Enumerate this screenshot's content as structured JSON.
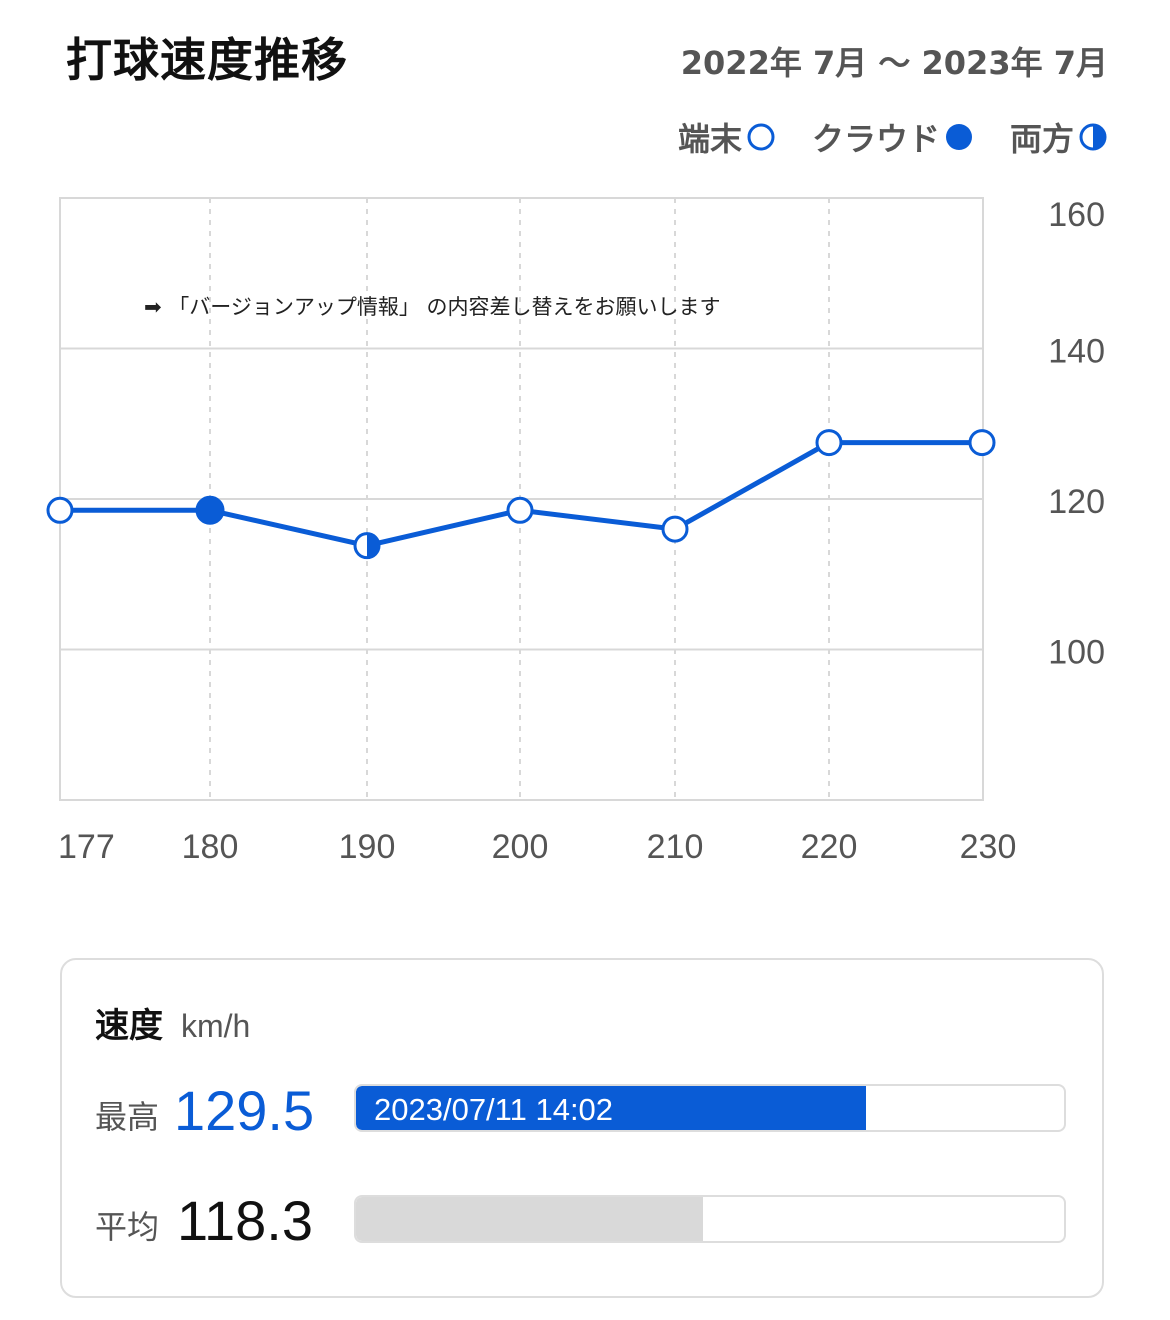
{
  "header": {
    "title": "打球速度推移",
    "period": "2022年 7月 〜 2023年 7月"
  },
  "legend": [
    {
      "label": "端末",
      "marker": "open-circle"
    },
    {
      "label": "クラウド",
      "marker": "filled-circle"
    },
    {
      "label": "両方",
      "marker": "half-circle"
    }
  ],
  "colors": {
    "accent": "#0a5cd6",
    "grid": "#d8d8d8",
    "axis_text": "#555555",
    "bar_average": "#d9d9d9"
  },
  "chart_data": {
    "type": "line",
    "annotation": "➡ 「バージョンアップ情報」 の内容差し替えをお願いします",
    "x_ticks": [
      "177",
      "180",
      "190",
      "200",
      "210",
      "220",
      "230"
    ],
    "y_ticks": [
      160,
      140,
      120,
      100
    ],
    "ylim": [
      80,
      160
    ],
    "grid": true,
    "y_axis_side": "right",
    "series": [
      {
        "points": [
          {
            "x": "177",
            "y": 118.5,
            "source": "端末"
          },
          {
            "x": "180",
            "y": 118.5,
            "source": "クラウド"
          },
          {
            "x": "190",
            "y": 113.8,
            "source": "両方"
          },
          {
            "x": "200",
            "y": 118.5,
            "source": "端末"
          },
          {
            "x": "210",
            "y": 116.0,
            "source": "端末"
          },
          {
            "x": "220",
            "y": 127.5,
            "source": "端末"
          },
          {
            "x": "230",
            "y": 127.5,
            "source": "端末"
          }
        ]
      }
    ]
  },
  "stats": {
    "title": "速度",
    "unit": "km/h",
    "max": {
      "label": "最高",
      "value": "129.5",
      "date": "2023/07/11 14:02",
      "fill_fraction": 0.72
    },
    "avg": {
      "label": "平均",
      "value": "118.3",
      "fill_fraction": 0.49
    }
  }
}
